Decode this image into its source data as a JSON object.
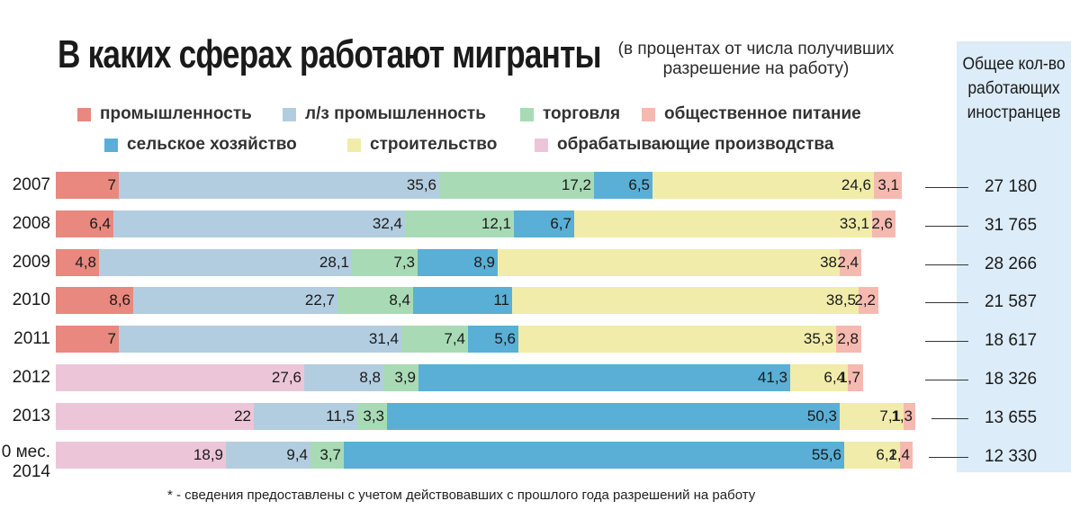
{
  "title": "В каких сферах работают мигранты",
  "subtitle": "(в процентах от числа получивших разрешение на работу)",
  "total_header": "Общее кол-во работающих иностранцев",
  "footnote": "* - сведения предоставлены с учетом действовавших с прошлого года разрешений на работу",
  "legend": [
    {
      "key": "prom",
      "label": "промышленность",
      "color": "#e8887e"
    },
    {
      "key": "lz",
      "label": "л/з промышленность",
      "color": "#b3cde0"
    },
    {
      "key": "torg",
      "label": "торговля",
      "color": "#a8dbb5"
    },
    {
      "key": "pit",
      "label": "общественное питание",
      "color": "#f6b9b0"
    },
    {
      "key": "selh",
      "label": "сельское хозяйство",
      "color": "#5aafd6"
    },
    {
      "key": "stroi",
      "label": "строительство",
      "color": "#f1ecaa"
    },
    {
      "key": "obr",
      "label": "обрабатывающие производства",
      "color": "#ecc6d8"
    }
  ],
  "chart_data": {
    "type": "bar",
    "orientation": "horizontal",
    "stacked": true,
    "title": "В каких сферах работают мигранты",
    "value_unit": "percent",
    "xlim": [
      0,
      100
    ],
    "rows": [
      {
        "label": "2007",
        "total": "27 180",
        "segments": [
          {
            "key": "prom",
            "value": 7,
            "label": "7"
          },
          {
            "key": "lz",
            "value": 35.6,
            "label": "35,6"
          },
          {
            "key": "torg",
            "value": 17.2,
            "label": "17,2"
          },
          {
            "key": "selh",
            "value": 6.5,
            "label": "6,5"
          },
          {
            "key": "stroi",
            "value": 24.6,
            "label": "24,6"
          },
          {
            "key": "pit",
            "value": 3.1,
            "label": "3,1"
          }
        ]
      },
      {
        "label": "2008",
        "total": "31 765",
        "segments": [
          {
            "key": "prom",
            "value": 6.4,
            "label": "6,4"
          },
          {
            "key": "lz",
            "value": 32.4,
            "label": "32,4"
          },
          {
            "key": "torg",
            "value": 12.1,
            "label": "12,1"
          },
          {
            "key": "selh",
            "value": 6.7,
            "label": "6,7"
          },
          {
            "key": "stroi",
            "value": 33.1,
            "label": "33,1"
          },
          {
            "key": "pit",
            "value": 2.6,
            "label": "2,6"
          }
        ]
      },
      {
        "label": "2009",
        "total": "28 266",
        "segments": [
          {
            "key": "prom",
            "value": 4.8,
            "label": "4,8"
          },
          {
            "key": "lz",
            "value": 28.1,
            "label": "28,1"
          },
          {
            "key": "torg",
            "value": 7.3,
            "label": "7,3"
          },
          {
            "key": "selh",
            "value": 8.9,
            "label": "8,9"
          },
          {
            "key": "stroi",
            "value": 38,
            "label": "38"
          },
          {
            "key": "pit",
            "value": 2.4,
            "label": "2,4"
          }
        ]
      },
      {
        "label": "2010",
        "total": "21 587",
        "segments": [
          {
            "key": "prom",
            "value": 8.6,
            "label": "8,6"
          },
          {
            "key": "lz",
            "value": 22.7,
            "label": "22,7"
          },
          {
            "key": "torg",
            "value": 8.4,
            "label": "8,4"
          },
          {
            "key": "selh",
            "value": 11,
            "label": "11"
          },
          {
            "key": "stroi",
            "value": 38.5,
            "label": "38,5"
          },
          {
            "key": "pit",
            "value": 2.2,
            "label": "2,2"
          }
        ]
      },
      {
        "label": "2011",
        "total": "18 617",
        "segments": [
          {
            "key": "prom",
            "value": 7,
            "label": "7"
          },
          {
            "key": "lz",
            "value": 31.4,
            "label": "31,4"
          },
          {
            "key": "torg",
            "value": 7.4,
            "label": "7,4"
          },
          {
            "key": "selh",
            "value": 5.6,
            "label": "5,6"
          },
          {
            "key": "stroi",
            "value": 35.3,
            "label": "35,3"
          },
          {
            "key": "pit",
            "value": 2.8,
            "label": "2,8"
          }
        ]
      },
      {
        "label": "2012",
        "total": "18 326",
        "segments": [
          {
            "key": "obr",
            "value": 27.6,
            "label": "27,6"
          },
          {
            "key": "lz",
            "value": 8.8,
            "label": "8,8"
          },
          {
            "key": "torg",
            "value": 3.9,
            "label": "3,9"
          },
          {
            "key": "selh",
            "value": 41.3,
            "label": "41,3"
          },
          {
            "key": "stroi",
            "value": 6.4,
            "label": "6,4"
          },
          {
            "key": "pit",
            "value": 1.7,
            "label": "1,7"
          }
        ]
      },
      {
        "label": "2013",
        "total": "13 655",
        "segments": [
          {
            "key": "obr",
            "value": 22,
            "label": "22"
          },
          {
            "key": "lz",
            "value": 11.5,
            "label": "11,5"
          },
          {
            "key": "torg",
            "value": 3.3,
            "label": "3,3"
          },
          {
            "key": "selh",
            "value": 50.3,
            "label": "50,3"
          },
          {
            "key": "stroi",
            "value": 7.1,
            "label": "7,1"
          },
          {
            "key": "pit",
            "value": 1.3,
            "label": "1,3"
          }
        ]
      },
      {
        "label": "0 мес.\n2014",
        "total": "12 330",
        "segments": [
          {
            "key": "obr",
            "value": 18.9,
            "label": "18,9"
          },
          {
            "key": "lz",
            "value": 9.4,
            "label": "9,4"
          },
          {
            "key": "torg",
            "value": 3.7,
            "label": "3,7"
          },
          {
            "key": "selh",
            "value": 55.6,
            "label": "55,6"
          },
          {
            "key": "stroi",
            "value": 6.2,
            "label": "6,2"
          },
          {
            "key": "pit",
            "value": 1.4,
            "label": "1,4"
          }
        ]
      }
    ]
  }
}
